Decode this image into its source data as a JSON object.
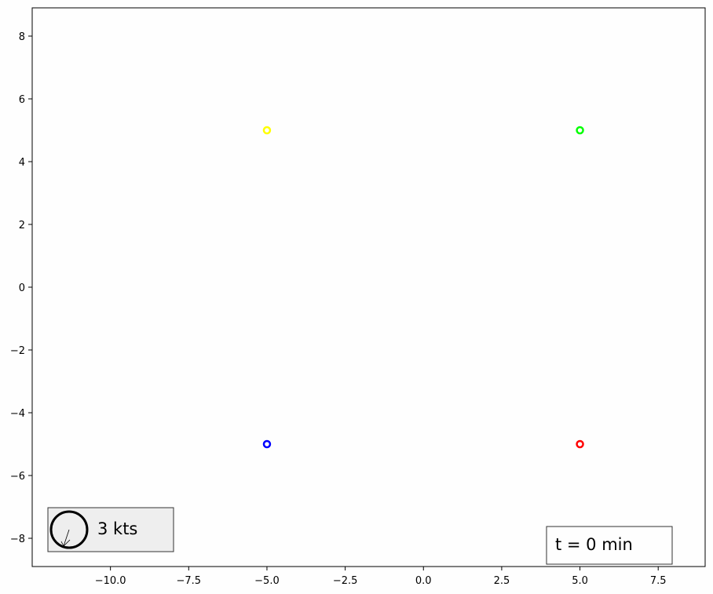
{
  "chart_data": {
    "type": "scatter",
    "title": "",
    "xlabel": "",
    "ylabel": "",
    "xlim": [
      -12.5,
      9.0
    ],
    "ylim": [
      -8.9,
      8.9
    ],
    "grid": false,
    "x_ticks": [
      -10.0,
      -7.5,
      -5.0,
      -2.5,
      0.0,
      2.5,
      5.0,
      7.5
    ],
    "x_tick_labels": [
      "−10.0",
      "−7.5",
      "−5.0",
      "−2.5",
      "0.0",
      "2.5",
      "5.0",
      "7.5"
    ],
    "y_ticks": [
      8,
      6,
      4,
      2,
      0,
      -2,
      -4,
      -6,
      -8
    ],
    "y_tick_labels": [
      "8",
      "6",
      "4",
      "2",
      "0",
      "−2",
      "−4",
      "−6",
      "−8"
    ],
    "points": [
      {
        "x": -5,
        "y": 5,
        "color": "#ffff00"
      },
      {
        "x": 5,
        "y": 5,
        "color": "#00ff00"
      },
      {
        "x": -5,
        "y": -5,
        "color": "#0000ff"
      },
      {
        "x": 5,
        "y": -5,
        "color": "#ff0000"
      }
    ],
    "wind_legend": {
      "label": "3 kts",
      "direction": "south-southwest"
    },
    "time_label": "t = 0 min"
  }
}
